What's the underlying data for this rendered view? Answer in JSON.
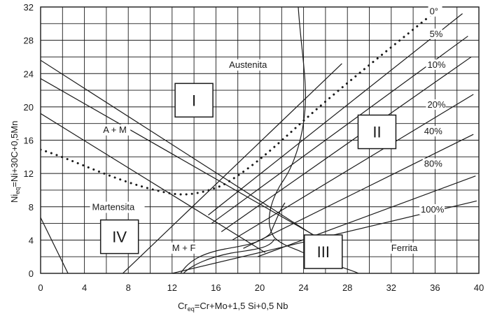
{
  "chart_data": {
    "type": "diagram",
    "x_axis": {
      "label_prefix": "Cr",
      "label_sub": "eq",
      "label_suffix": "=Cr+Mo+1,5 Si+0,5 Nb",
      "range": [
        0,
        40
      ],
      "ticks": [
        0,
        4,
        8,
        12,
        16,
        20,
        24,
        28,
        32,
        36,
        40
      ]
    },
    "y_axis": {
      "label_prefix": "Ni",
      "label_sub": "eq",
      "label_suffix": "=Ni+30C+0,5Mn",
      "range": [
        0,
        32
      ],
      "ticks": [
        0,
        4,
        8,
        12,
        16,
        20,
        24,
        28,
        32
      ]
    },
    "grid": true,
    "regions": [
      {
        "id": "austenita",
        "label": "Austenita",
        "x": 17.2,
        "y": 24.7
      },
      {
        "id": "a-m",
        "label": "A + M",
        "x": 5.7,
        "y": 16.9
      },
      {
        "id": "martensita",
        "label": "Martensita",
        "x": 4.7,
        "y": 7.6
      },
      {
        "id": "m-f",
        "label": "M + F",
        "x": 12.0,
        "y": 2.7
      },
      {
        "id": "ferrita",
        "label": "Ferrita",
        "x": 32.0,
        "y": 2.7
      }
    ],
    "roman_labels": [
      {
        "label": "I",
        "x": 14.0,
        "y": 20.8
      },
      {
        "label": "II",
        "x": 30.7,
        "y": 17.0
      },
      {
        "label": "III",
        "x": 25.8,
        "y": 2.6
      },
      {
        "label": "IV",
        "x": 7.2,
        "y": 4.4
      }
    ],
    "ferrite_lines": [
      {
        "label": "0°",
        "label_x": 35.5,
        "label_y": 31.1,
        "start": [
          15.3,
          7.0
        ],
        "end": [
          38.5,
          31.2
        ]
      },
      {
        "label": "5%",
        "label_x": 35.5,
        "label_y": 28.4,
        "start": [
          15.6,
          6.0
        ],
        "end": [
          39.0,
          28.5
        ]
      },
      {
        "label": "10%",
        "label_x": 35.3,
        "label_y": 24.7,
        "start": [
          16.5,
          5.0
        ],
        "end": [
          39.3,
          26.0
        ]
      },
      {
        "label": "20%",
        "label_x": 35.3,
        "label_y": 19.9,
        "start": [
          17.5,
          4.0
        ],
        "end": [
          39.5,
          21.5
        ]
      },
      {
        "label": "40%",
        "label_x": 35.0,
        "label_y": 16.7,
        "start": [
          18.5,
          3.0
        ],
        "end": [
          39.5,
          16.7
        ]
      },
      {
        "label": "80%",
        "label_x": 35.0,
        "label_y": 12.8,
        "start": [
          19.8,
          2.0
        ],
        "end": [
          39.7,
          11.7
        ]
      },
      {
        "label": "100%",
        "label_x": 34.7,
        "label_y": 7.3,
        "start": [
          12.0,
          0.0
        ],
        "end": [
          39.8,
          8.7
        ]
      }
    ],
    "diagonal_lines": [
      {
        "from": [
          0.0,
          25.6
        ],
        "to": [
          25.0,
          4.5
        ]
      },
      {
        "from": [
          0.0,
          23.4
        ],
        "to": [
          26.0,
          3.8
        ]
      },
      {
        "from": [
          0.0,
          19.2
        ],
        "to": [
          20.5,
          2.5
        ]
      },
      {
        "from": [
          0.0,
          6.7
        ],
        "to": [
          2.5,
          0.0
        ]
      },
      {
        "from": [
          7.5,
          0.0
        ],
        "to": [
          27.5,
          25.2
        ]
      }
    ]
  }
}
